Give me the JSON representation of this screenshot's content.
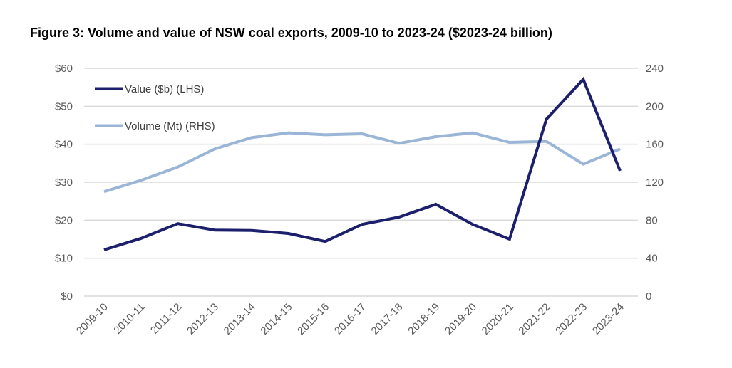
{
  "chart_data": {
    "type": "line",
    "title": "Figure 3: Volume and value of NSW coal exports, 2009-10 to 2023-24 ($2023-24 billion)",
    "categories": [
      "2009-10",
      "2010-11",
      "2011-12",
      "2012-13",
      "2013-14",
      "2014-15",
      "2015-16",
      "2016-17",
      "2017-18",
      "2018-19",
      "2019-20",
      "2020-21",
      "2021-22",
      "2022-23",
      "2023-24"
    ],
    "series": [
      {
        "name": "Value ($b) (LHS)",
        "axis": "left",
        "color": "#1c1f6b",
        "values": [
          12.2,
          15.2,
          19.1,
          17.4,
          17.3,
          16.5,
          14.4,
          18.9,
          20.8,
          24.2,
          18.9,
          15.0,
          46.6,
          57.1,
          33.0
        ]
      },
      {
        "name": "Volume (Mt) (RHS)",
        "axis": "right",
        "color": "#9bb5d6",
        "values": [
          110,
          122,
          136,
          155,
          167,
          172,
          170,
          171,
          161,
          168,
          172,
          162,
          163,
          139,
          155
        ]
      }
    ],
    "left_axis": {
      "ylim": [
        0,
        60
      ],
      "ticks": [
        "$0",
        "$10",
        "$20",
        "$30",
        "$40",
        "$50",
        "$60"
      ]
    },
    "right_axis": {
      "ylim": [
        0,
        240
      ],
      "ticks": [
        "0",
        "40",
        "80",
        "120",
        "160",
        "200",
        "240"
      ]
    },
    "grid": true,
    "legend_placement": "top-left"
  }
}
